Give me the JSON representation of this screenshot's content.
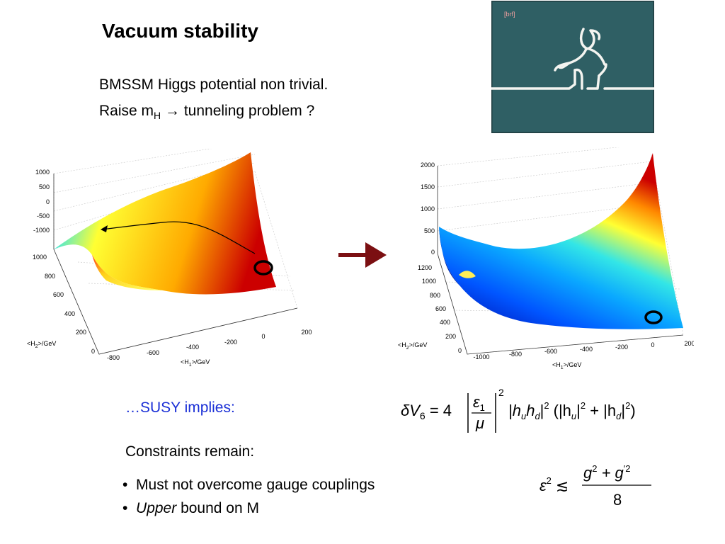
{
  "title": "Vacuum stability",
  "intro": {
    "line1": "BMSSM Higgs potential non trivial.",
    "line2_prefix": "Raise m",
    "line2_sub": "H",
    "line2_suffix": " → tunneling problem ?"
  },
  "cartoon": {
    "badge": "[brf]"
  },
  "plot_left": {
    "z_ticks": [
      "1000",
      "500",
      "0",
      "-500",
      "-1000"
    ],
    "y_ticks": [
      "1000",
      "800",
      "600",
      "400",
      "200",
      "0"
    ],
    "x_ticks": [
      "-800",
      "-600",
      "-400",
      "-200",
      "0",
      "200"
    ],
    "ylabel_prefix": "<H",
    "ylabel_sub": "2",
    "ylabel_suffix": ">/GeV",
    "xlabel_prefix": "<H",
    "xlabel_sub": "1",
    "xlabel_suffix": ">/GeV"
  },
  "plot_right": {
    "z_ticks": [
      "2000",
      "1500",
      "1000",
      "500",
      "0"
    ],
    "y_ticks": [
      "1200",
      "1000",
      "800",
      "600",
      "400",
      "200",
      "0"
    ],
    "x_ticks": [
      "-1000",
      "-800",
      "-600",
      "-400",
      "-200",
      "0",
      "200"
    ],
    "ylabel_prefix": "<H",
    "ylabel_sub": "2",
    "ylabel_suffix": ">/GeV",
    "xlabel_prefix": "<H",
    "xlabel_sub": "1",
    "xlabel_suffix": ">/GeV"
  },
  "susy_text": "…SUSY implies:",
  "formula1": {
    "lhs": "δV",
    "lhs_sub": "6",
    "eq": " = 4",
    "num": "ε",
    "num_sub": "1",
    "den": "μ",
    "pow": "2",
    "t1": "|h",
    "t1_sub1": "u",
    "t1_mid": "h",
    "t1_sub2": "d",
    "t1_end": "|",
    "t1_pow": "2",
    "t2_open": "(|h",
    "t2_sub": "u",
    "t2_end": "|",
    "t2_pow": "2",
    "plus": " + |h",
    "t3_sub": "d",
    "t3_end": "|",
    "t3_pow": "2",
    "close": ")"
  },
  "constraints_title": "Constraints remain:",
  "bullets": {
    "b1": "Must not overcome gauge couplings",
    "b2_em": "Upper",
    "b2_rest": " bound on M"
  },
  "formula2": {
    "lhs": "ε",
    "lhs_pow": "2",
    "rel": "≲",
    "num_g": "g",
    "num_g_pow": "2",
    "num_plus": " + g",
    "num_g2_pow": "′2",
    "den": "8"
  },
  "colors": {
    "susy_blue": "#1a2fd6",
    "arrow_red": "#7b0f12",
    "chalkboard": "#2f5f64"
  }
}
